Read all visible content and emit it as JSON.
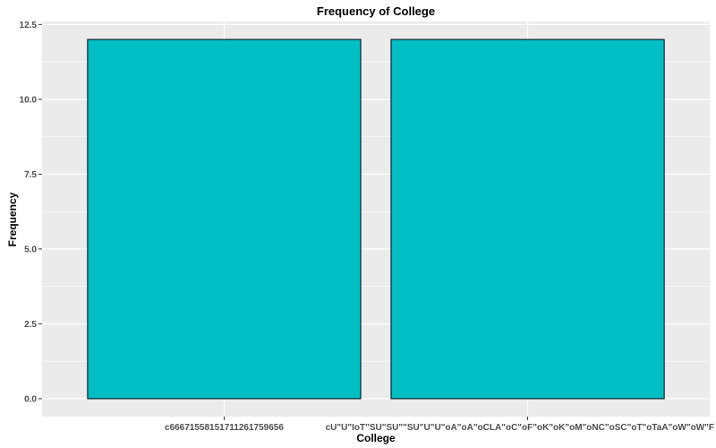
{
  "chart_data": {
    "type": "bar",
    "title": "Frequency of College",
    "xlabel": "College",
    "ylabel": "Frequency",
    "categories": [
      "c66671558151711261759656",
      "cU\"U\"IoT\"SU\"SU\"\"SU\"U\"U\"oA\"oA\"oCLA\"oC\"oF\"oK\"oK\"oM\"oNC\"oSC\"oT\"oTaA\"oW\"oW\"F"
    ],
    "values": [
      12,
      12
    ],
    "ylim": [
      -0.6,
      12.6
    ],
    "yticks": [
      0,
      2.5,
      5,
      7.5,
      10,
      12.5
    ],
    "ytick_labels": [
      "0.0",
      "2.5",
      "5.0",
      "7.5",
      "10.0",
      "12.5"
    ],
    "grid": true,
    "bar_fill": "#00BFC4",
    "bar_outline": "#000000",
    "panel_background": "#EBEBEB",
    "grid_color": "#FFFFFF"
  }
}
